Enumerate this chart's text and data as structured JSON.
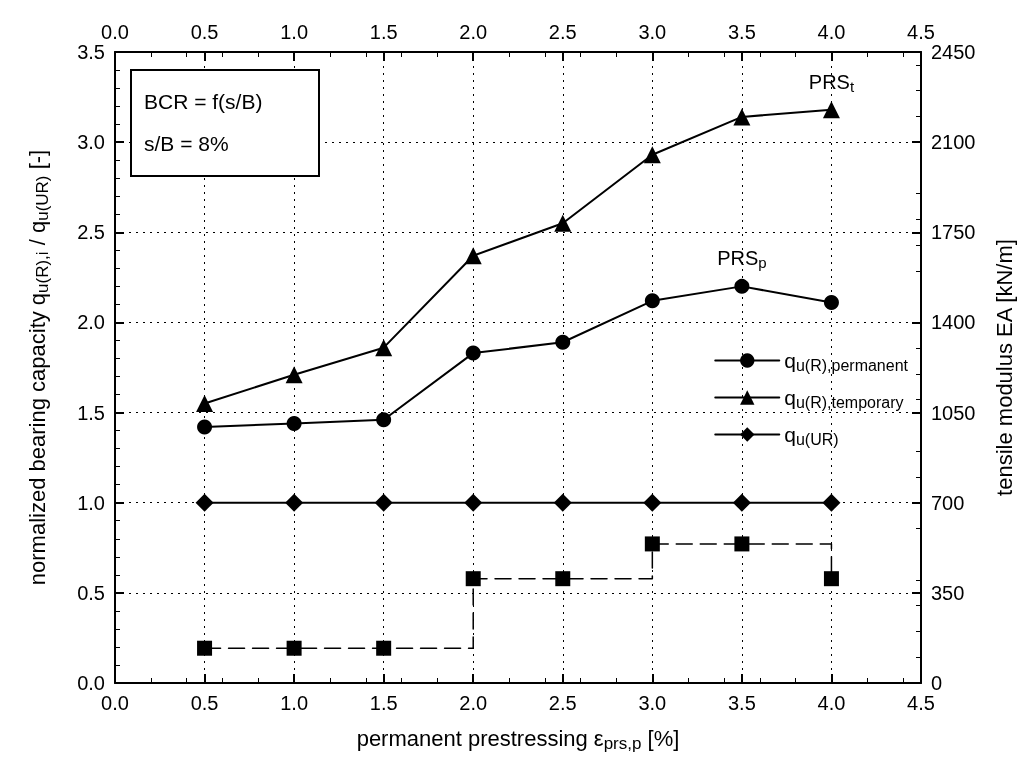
{
  "chart_data": {
    "type": "line",
    "xlabel": "permanent prestressing ε$_{prs,p}$ [%]",
    "ylabel": "normalized bearing capacity q$_{u(R),i}$ / q$_{u(UR)}$ [-]",
    "y2label": "tensile modulus EA [kN/m]",
    "x": [
      0.5,
      1.0,
      1.5,
      2.0,
      2.5,
      3.0,
      3.5,
      4.0
    ],
    "series": [
      {
        "name": "q$_{u(R),permanent}$",
        "color": "#000000",
        "marker": "circle",
        "line_style": "solid",
        "values": [
          1.42,
          1.44,
          1.46,
          1.83,
          1.89,
          2.12,
          2.2,
          2.11
        ]
      },
      {
        "name": "q$_{u(R),temporary}$",
        "color": "#000000",
        "marker": "triangle",
        "line_style": "solid",
        "values": [
          1.55,
          1.71,
          1.86,
          2.37,
          2.55,
          2.93,
          3.14,
          3.18
        ]
      },
      {
        "name": "q$_{u(UR)}$",
        "color": "#000000",
        "marker": "diamond",
        "line_style": "solid",
        "values": [
          1.0,
          1.0,
          1.0,
          1.0,
          1.0,
          1.0,
          1.0,
          1.0
        ]
      },
      {
        "type": "step",
        "axis": "y2",
        "color": "#000000",
        "marker": "square",
        "line_style": "dashed",
        "values": [
          135,
          135,
          135,
          405,
          405,
          540,
          540,
          405
        ]
      }
    ],
    "xlim": [
      0,
      4.5
    ],
    "xticks": [
      {
        "value": 0,
        "label": "0.0"
      },
      0.5,
      {
        "value": 1,
        "label": "1.0"
      },
      1.5,
      {
        "value": 2,
        "label": "2.0"
      },
      2.5,
      {
        "value": 3,
        "label": "3.0"
      },
      3.5,
      {
        "value": 4,
        "label": "4.0"
      },
      4.5
    ],
    "x2lim": [
      0,
      4.5
    ],
    "x2ticks": [
      {
        "value": 0,
        "label": "0.0"
      },
      0.5,
      {
        "value": 1,
        "label": "1.0"
      },
      1.5,
      {
        "value": 2,
        "label": "2.0"
      },
      2.5,
      {
        "value": 3,
        "label": "3.0"
      },
      3.5,
      {
        "value": 4,
        "label": "4.0"
      },
      4.5
    ],
    "ylim": [
      0,
      3.5
    ],
    "yticks": [
      {
        "value": 0,
        "label": "0.0"
      },
      0.5,
      {
        "value": 1,
        "label": "1.0"
      },
      1.5,
      {
        "value": 2,
        "label": "2.0"
      },
      2.5,
      {
        "value": 3,
        "label": "3.0"
      },
      3.5
    ],
    "y2lim": [
      0,
      2450
    ],
    "y2ticks": [
      0,
      350,
      700,
      1050,
      1400,
      1750,
      2100,
      2450
    ],
    "grid": true,
    "legend": "right",
    "annotations": [
      "BCR = f(s/B)",
      "s/B = 8%",
      {
        "text": "PRS$_{t}$",
        "x": 4.0,
        "y": 3.18
      },
      {
        "text": "PRS$_{p}$",
        "x": 3.5,
        "y": 2.2
      }
    ]
  }
}
